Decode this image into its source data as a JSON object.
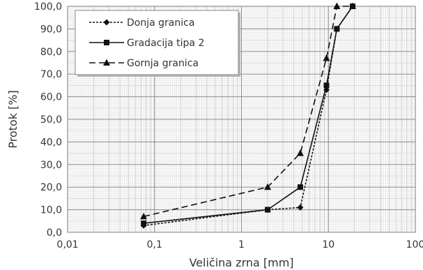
{
  "chart_data": {
    "type": "line",
    "xscale": "log",
    "xlabel": "Veličina zrna [mm]",
    "ylabel": "Protok [%]",
    "xlim": [
      0.01,
      100
    ],
    "ylim": [
      0,
      100
    ],
    "xticks": [
      0.01,
      0.1,
      1,
      10,
      100
    ],
    "xtick_labels": [
      "0,01",
      "0,1",
      "1",
      "10",
      "100"
    ],
    "yticks": [
      0,
      10,
      20,
      30,
      40,
      50,
      60,
      70,
      80,
      90,
      100
    ],
    "ytick_labels": [
      "0,0",
      "10,0",
      "20,0",
      "30,0",
      "40,0",
      "50,0",
      "60,0",
      "70,0",
      "80,0",
      "90,0",
      "100,0"
    ],
    "grid": true,
    "legend_position": "top-left",
    "series": [
      {
        "name": "Donja granica",
        "line_style": "dotted",
        "marker": "diamond",
        "points": [
          [
            0.075,
            3
          ],
          [
            2,
            10
          ],
          [
            4.75,
            11
          ],
          [
            9.5,
            63
          ],
          [
            12.5,
            90
          ],
          [
            19,
            100
          ]
        ]
      },
      {
        "name": "Gradacija tipa 2",
        "line_style": "solid",
        "marker": "square",
        "points": [
          [
            0.075,
            4
          ],
          [
            2,
            10
          ],
          [
            4.75,
            20
          ],
          [
            9.5,
            65
          ],
          [
            12.5,
            90
          ],
          [
            19,
            100
          ]
        ]
      },
      {
        "name": "Gornja granica",
        "line_style": "dashed",
        "marker": "triangle",
        "points": [
          [
            0.075,
            7
          ],
          [
            2,
            20
          ],
          [
            4.75,
            35
          ],
          [
            9.5,
            77
          ],
          [
            12.5,
            100
          ],
          [
            19,
            100
          ]
        ]
      }
    ]
  }
}
